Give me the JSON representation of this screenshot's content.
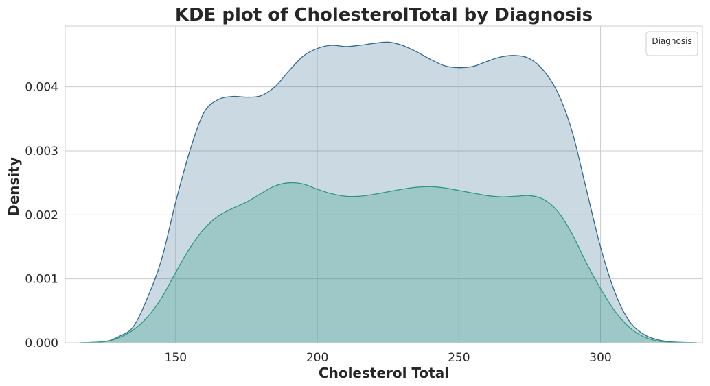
{
  "chart_data": {
    "type": "area",
    "title": "KDE plot of CholesterolTotal by Diagnosis",
    "xlabel": "Cholesterol Total",
    "ylabel": "Density",
    "xlim": [
      111,
      336
    ],
    "ylim": [
      0,
      0.00495
    ],
    "xticks": [
      150,
      200,
      250,
      300
    ],
    "yticks": [
      0.0,
      0.001,
      0.002,
      0.003,
      0.004
    ],
    "ytick_labels": [
      "0.000",
      "0.001",
      "0.002",
      "0.003",
      "0.004"
    ],
    "grid": true,
    "legend": {
      "title": "Diagnosis",
      "placement": "top-right",
      "entries": []
    },
    "series": [
      {
        "color": "#31688e",
        "fill_alpha": 0.25,
        "x": [
          116,
          125,
          130,
          135,
          140,
          145,
          150,
          155,
          160,
          165,
          170,
          175,
          180,
          185,
          190,
          195,
          200,
          205,
          210,
          215,
          220,
          225,
          230,
          235,
          240,
          245,
          250,
          255,
          260,
          265,
          270,
          275,
          280,
          285,
          290,
          295,
          300,
          305,
          310,
          315,
          320,
          325,
          334
        ],
        "y": [
          0.0,
          2e-05,
          0.0001,
          0.00025,
          0.0007,
          0.0013,
          0.0022,
          0.003,
          0.0036,
          0.0038,
          0.00385,
          0.00384,
          0.00386,
          0.004,
          0.00425,
          0.00448,
          0.0046,
          0.00465,
          0.00463,
          0.00465,
          0.00468,
          0.0047,
          0.00465,
          0.00455,
          0.00443,
          0.00433,
          0.0043,
          0.00432,
          0.0044,
          0.00447,
          0.00449,
          0.00444,
          0.00425,
          0.0039,
          0.0033,
          0.0024,
          0.0015,
          0.0008,
          0.00035,
          0.00014,
          5e-05,
          1.5e-05,
          0.0
        ]
      },
      {
        "color": "#2a9a7c",
        "fill_alpha": 0.28,
        "x": [
          116,
          125,
          130,
          135,
          140,
          145,
          150,
          155,
          160,
          165,
          170,
          175,
          180,
          185,
          190,
          195,
          200,
          205,
          210,
          215,
          220,
          225,
          230,
          235,
          240,
          245,
          250,
          255,
          260,
          265,
          270,
          275,
          280,
          285,
          290,
          295,
          300,
          305,
          310,
          315,
          320,
          325,
          334
        ],
        "y": [
          0.0,
          2e-05,
          8e-05,
          0.0002,
          0.0004,
          0.0007,
          0.0011,
          0.00148,
          0.00178,
          0.00198,
          0.0021,
          0.0022,
          0.00233,
          0.00245,
          0.0025,
          0.00248,
          0.0024,
          0.00233,
          0.00229,
          0.00229,
          0.00232,
          0.00236,
          0.0024,
          0.00243,
          0.00244,
          0.00242,
          0.00238,
          0.00234,
          0.0023,
          0.00228,
          0.00229,
          0.0023,
          0.00224,
          0.00205,
          0.0017,
          0.00125,
          0.00085,
          0.0005,
          0.00025,
          0.0001,
          3e-05,
          1e-05,
          0.0
        ]
      }
    ]
  },
  "colors": {
    "grid": "#cccccc",
    "frame": "#cccccc",
    "text": "#262626",
    "legend_border": "#cccccc"
  }
}
